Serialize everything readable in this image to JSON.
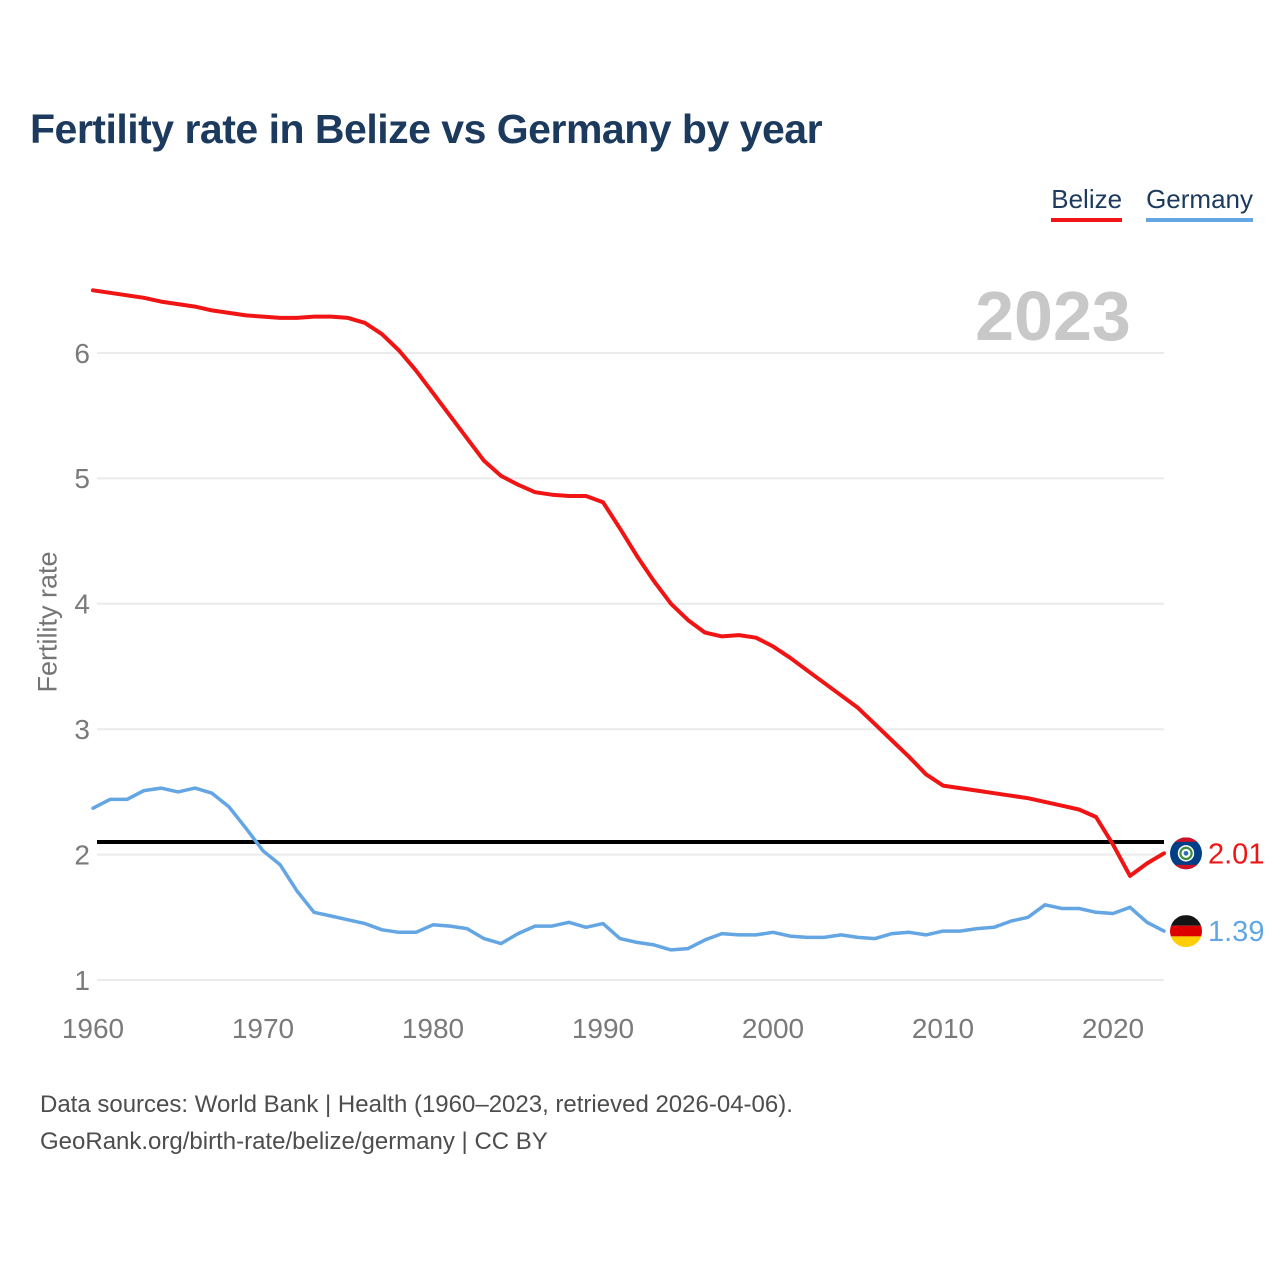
{
  "page": {
    "title": "Fertility rate in Belize vs Germany by year",
    "watermark": "2023",
    "footer_line1": "Data sources: World Bank | Health (1960–2023, retrieved 2026-04-06).",
    "footer_line2": "GeoRank.org/birth-rate/belize/germany | CC BY"
  },
  "legend": {
    "items": [
      {
        "label": "Belize",
        "color": "#f01414"
      },
      {
        "label": "Germany",
        "color": "#63a6e3"
      }
    ]
  },
  "chart_data": {
    "type": "line",
    "title": "Fertility rate in Belize vs Germany by year",
    "xlabel": "",
    "ylabel": "Fertility rate",
    "watermark": "2023",
    "grid": "horizontal",
    "legend_position": "top-right",
    "x_range": [
      1960,
      2023
    ],
    "ylim": [
      0.85,
      6.7
    ],
    "x_ticks": [
      1960,
      1970,
      1980,
      1990,
      2000,
      2010,
      2020
    ],
    "y_ticks": [
      1,
      2,
      3,
      4,
      5,
      6
    ],
    "replacement_level_line": 2.1,
    "axis_colors": {
      "tick": "#7a7a7a",
      "grid": "#ebebeb",
      "replacement_line": "#000000",
      "watermark": "#c8c8c8"
    },
    "years": [
      1960,
      1961,
      1962,
      1963,
      1964,
      1965,
      1966,
      1967,
      1968,
      1969,
      1970,
      1971,
      1972,
      1973,
      1974,
      1975,
      1976,
      1977,
      1978,
      1979,
      1980,
      1981,
      1982,
      1983,
      1984,
      1985,
      1986,
      1987,
      1988,
      1989,
      1990,
      1991,
      1992,
      1993,
      1994,
      1995,
      1996,
      1997,
      1998,
      1999,
      2000,
      2001,
      2002,
      2003,
      2004,
      2005,
      2006,
      2007,
      2008,
      2009,
      2010,
      2011,
      2012,
      2013,
      2014,
      2015,
      2016,
      2017,
      2018,
      2019,
      2020,
      2021,
      2022,
      2023
    ],
    "series": [
      {
        "name": "Belize",
        "color": "#f01414",
        "end_label": "2.01",
        "end_value": 2.01,
        "flag": "belize",
        "values": [
          6.5,
          6.48,
          6.46,
          6.44,
          6.41,
          6.39,
          6.37,
          6.34,
          6.32,
          6.3,
          6.29,
          6.28,
          6.28,
          6.29,
          6.29,
          6.28,
          6.24,
          6.15,
          6.02,
          5.86,
          5.68,
          5.5,
          5.32,
          5.14,
          5.02,
          4.95,
          4.89,
          4.87,
          4.86,
          4.86,
          4.81,
          4.6,
          4.38,
          4.18,
          4.0,
          3.87,
          3.77,
          3.74,
          3.75,
          3.73,
          3.66,
          3.57,
          3.47,
          3.37,
          3.27,
          3.17,
          3.04,
          2.91,
          2.78,
          2.64,
          2.55,
          2.53,
          2.51,
          2.49,
          2.47,
          2.45,
          2.42,
          2.39,
          2.36,
          2.3,
          2.08,
          1.83,
          1.93,
          2.01
        ]
      },
      {
        "name": "Germany",
        "color": "#63a6e3",
        "end_label": "1.39",
        "end_value": 1.39,
        "flag": "germany",
        "values": [
          2.37,
          2.44,
          2.44,
          2.51,
          2.53,
          2.5,
          2.53,
          2.49,
          2.38,
          2.21,
          2.03,
          1.92,
          1.71,
          1.54,
          1.51,
          1.48,
          1.45,
          1.4,
          1.38,
          1.38,
          1.44,
          1.43,
          1.41,
          1.33,
          1.29,
          1.37,
          1.43,
          1.43,
          1.46,
          1.42,
          1.45,
          1.33,
          1.3,
          1.28,
          1.24,
          1.25,
          1.32,
          1.37,
          1.36,
          1.36,
          1.38,
          1.35,
          1.34,
          1.34,
          1.36,
          1.34,
          1.33,
          1.37,
          1.38,
          1.36,
          1.39,
          1.39,
          1.41,
          1.42,
          1.47,
          1.5,
          1.6,
          1.57,
          1.57,
          1.54,
          1.53,
          1.58,
          1.46,
          1.39
        ]
      }
    ],
    "flag_colors": {
      "belize": {
        "field": "#003f87",
        "stripe": "#ce1126",
        "disc": "#ffffff",
        "wreath": "#3b8c3f",
        "center": "#2b6cb8"
      },
      "germany": {
        "top": "#141414",
        "middle": "#dd0000",
        "bottom": "#ffce00"
      }
    }
  }
}
